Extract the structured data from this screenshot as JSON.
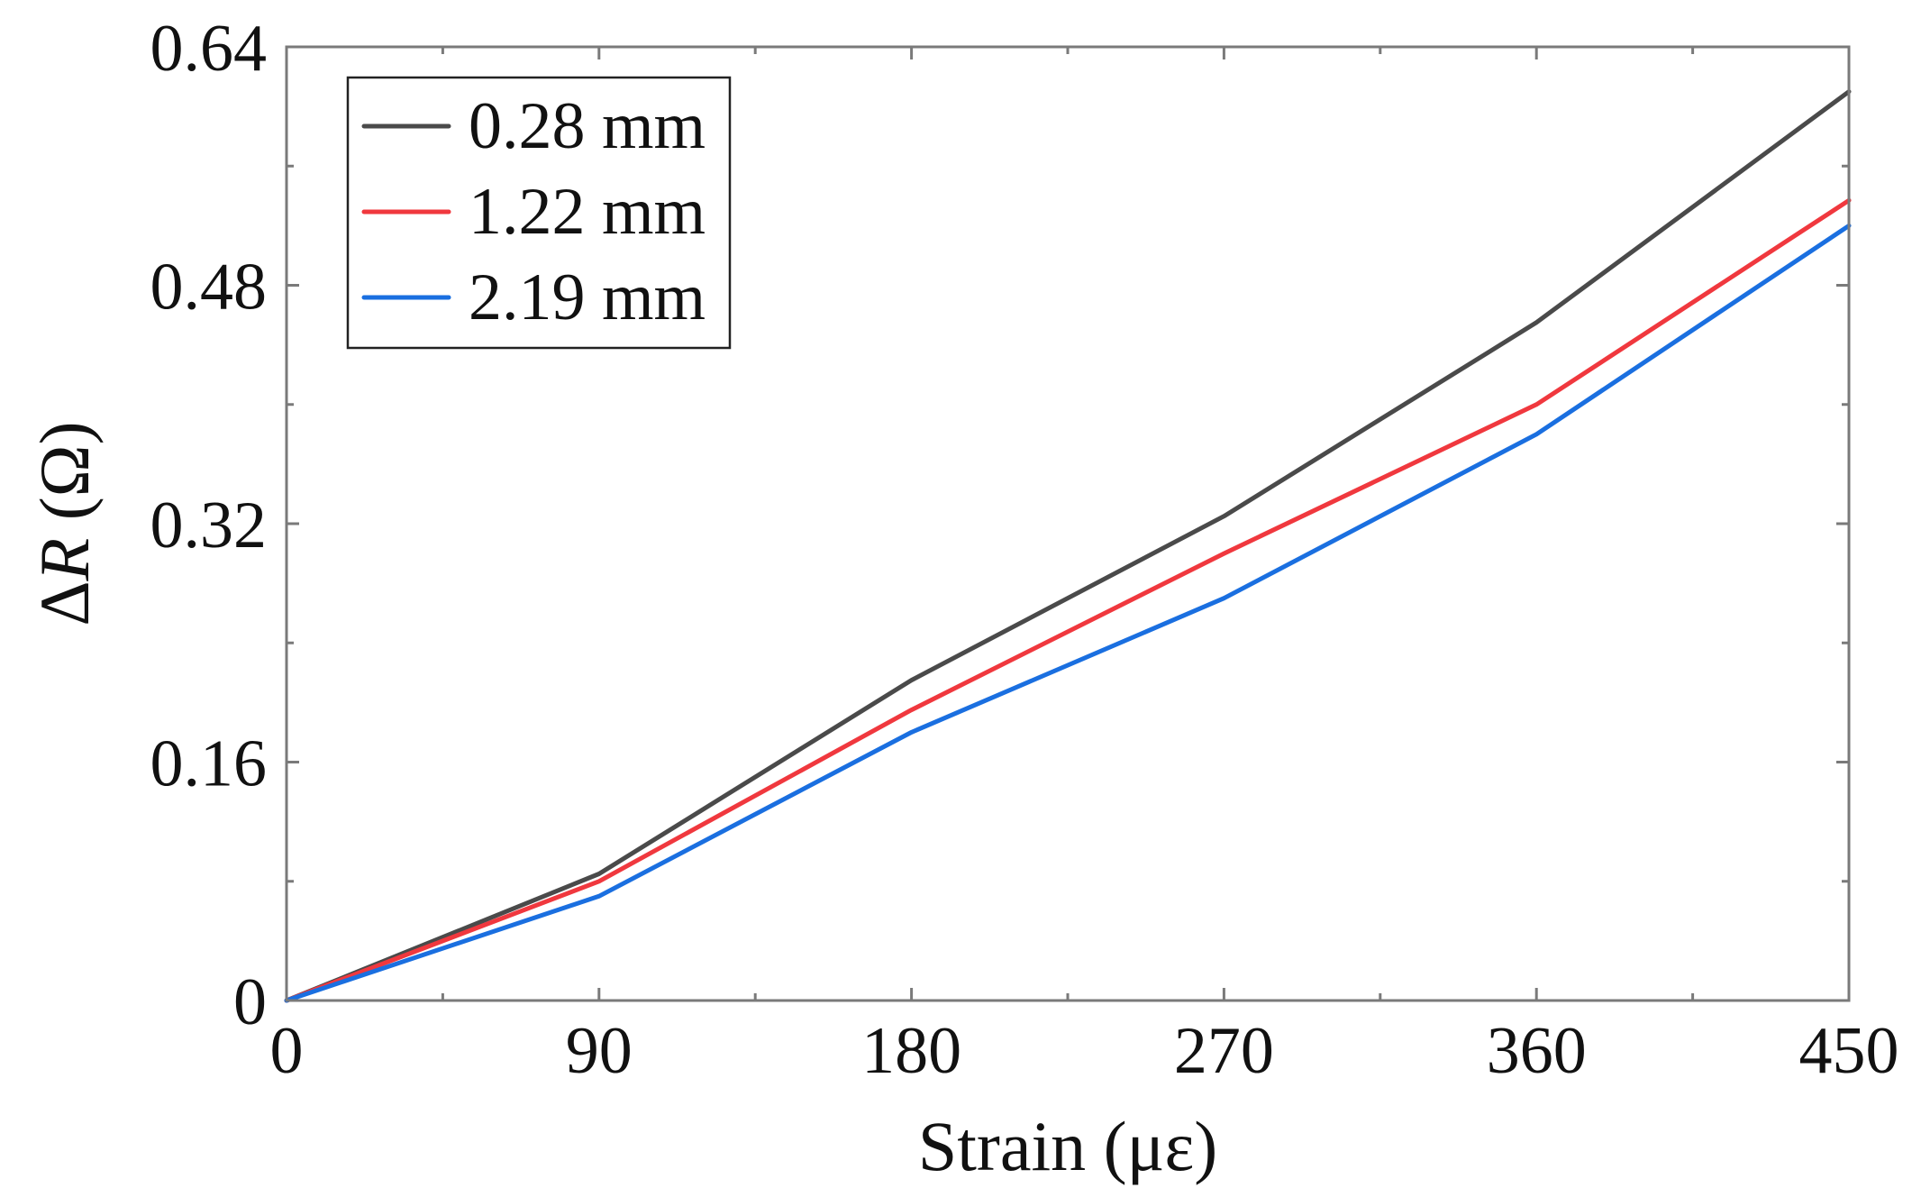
{
  "chart_data": {
    "type": "line",
    "title": "",
    "xlabel": "Strain (με)",
    "ylabel": {
      "prefix": "Δ",
      "italic": "R",
      "suffix": " (Ω)"
    },
    "xlim": [
      0,
      450
    ],
    "ylim": [
      0,
      0.64
    ],
    "x_ticks": [
      0,
      90,
      180,
      270,
      360,
      450
    ],
    "x_tick_labels": [
      "0",
      "90",
      "180",
      "270",
      "360",
      "450"
    ],
    "y_ticks": [
      0,
      0.16,
      0.32,
      0.48,
      0.64
    ],
    "y_tick_labels": [
      "0",
      "0.16",
      "0.32",
      "0.48",
      "0.64"
    ],
    "grid": false,
    "legend_position": "top-left",
    "x": [
      0,
      90,
      180,
      270,
      360,
      450
    ],
    "series": [
      {
        "name": "0.28 mm",
        "color": "#4a4a4a",
        "values": [
          0,
          0.085,
          0.215,
          0.325,
          0.455,
          0.61
        ]
      },
      {
        "name": "1.22 mm",
        "color": "#f0383e",
        "values": [
          0,
          0.08,
          0.195,
          0.3,
          0.4,
          0.537
        ]
      },
      {
        "name": "2.19 mm",
        "color": "#1a6fe0",
        "values": [
          0,
          0.07,
          0.18,
          0.27,
          0.38,
          0.52
        ]
      }
    ]
  }
}
